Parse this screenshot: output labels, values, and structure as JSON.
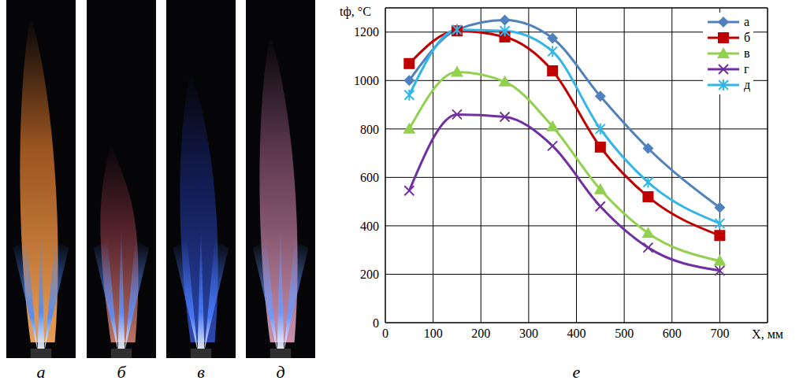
{
  "chart_data": {
    "type": "line",
    "y_label": "tф, °C",
    "x_label": "X, мм",
    "x": [
      50,
      150,
      250,
      350,
      450,
      550,
      700
    ],
    "xlim": [
      0,
      800
    ],
    "xticks": [
      0,
      100,
      200,
      300,
      400,
      500,
      600,
      700
    ],
    "ylim": [
      0,
      1300
    ],
    "yticks": [
      0,
      200,
      400,
      600,
      800,
      1000,
      1200
    ],
    "grid": true,
    "legend": "top right",
    "line_style": "smooth",
    "series": [
      {
        "name": "а",
        "color": "#4f81bd",
        "marker": "diamond",
        "values": [
          1000,
          1210,
          1250,
          1175,
          935,
          720,
          475
        ]
      },
      {
        "name": "б",
        "color": "#c00000",
        "marker": "square",
        "values": [
          1070,
          1205,
          1180,
          1040,
          725,
          520,
          360
        ]
      },
      {
        "name": "в",
        "color": "#92d050",
        "marker": "triangle",
        "values": [
          800,
          1035,
          995,
          810,
          550,
          370,
          255
        ]
      },
      {
        "name": "г",
        "color": "#7030a0",
        "marker": "cross",
        "values": [
          545,
          860,
          850,
          730,
          480,
          310,
          215
        ]
      },
      {
        "name": "д",
        "color": "#31b6e7",
        "marker": "star",
        "values": [
          940,
          1210,
          1205,
          1120,
          800,
          580,
          410
        ]
      }
    ]
  },
  "photo_captions": [
    "а",
    "б",
    "в",
    "д"
  ],
  "chart_caption": "е"
}
